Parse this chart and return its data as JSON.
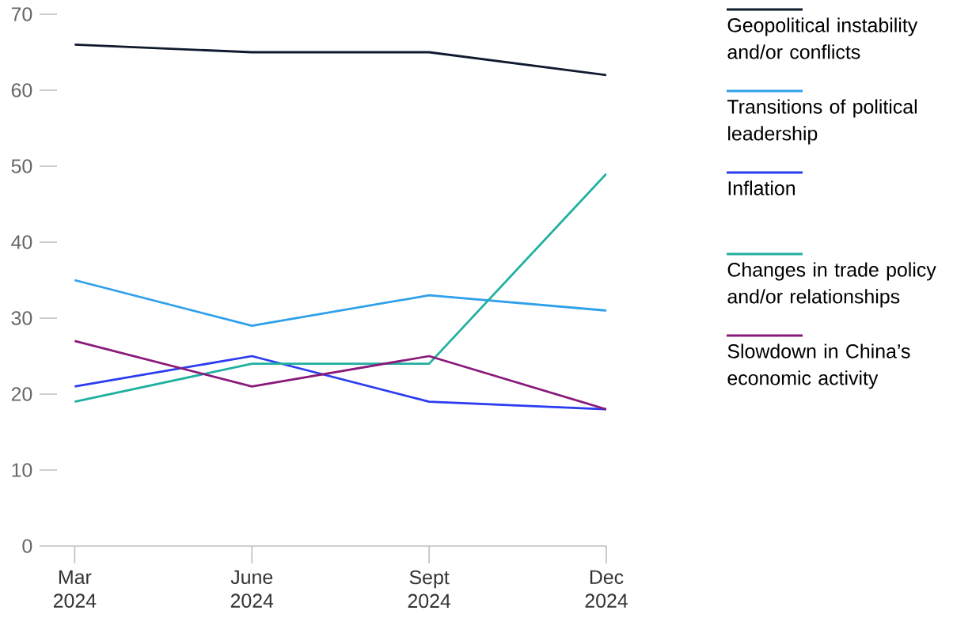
{
  "chart_data": {
    "type": "line",
    "categories": [
      "Mar 2024",
      "June 2024",
      "Sept 2024",
      "Dec 2024"
    ],
    "series": [
      {
        "name": "Geopolitical instability and/or conflicts",
        "color": "#0f1a2e",
        "values": [
          66,
          65,
          65,
          62
        ]
      },
      {
        "name": "Transitions of political leadership",
        "color": "#2fa0ea",
        "values": [
          35,
          29,
          33,
          31
        ]
      },
      {
        "name": "Inflation",
        "color": "#2b3cf0",
        "values": [
          21,
          25,
          19,
          18
        ]
      },
      {
        "name": "Changes in trade policy and/or relationships",
        "color": "#20b0a0",
        "values": [
          19,
          24,
          24,
          49
        ]
      },
      {
        "name": "Slowdown in China’s economic activity",
        "color": "#8a1a7a",
        "values": [
          27,
          21,
          25,
          18
        ]
      }
    ],
    "ylim": [
      0,
      70
    ],
    "yticks": [
      0,
      10,
      20,
      30,
      40,
      50,
      60,
      70
    ],
    "legend": "top right"
  }
}
